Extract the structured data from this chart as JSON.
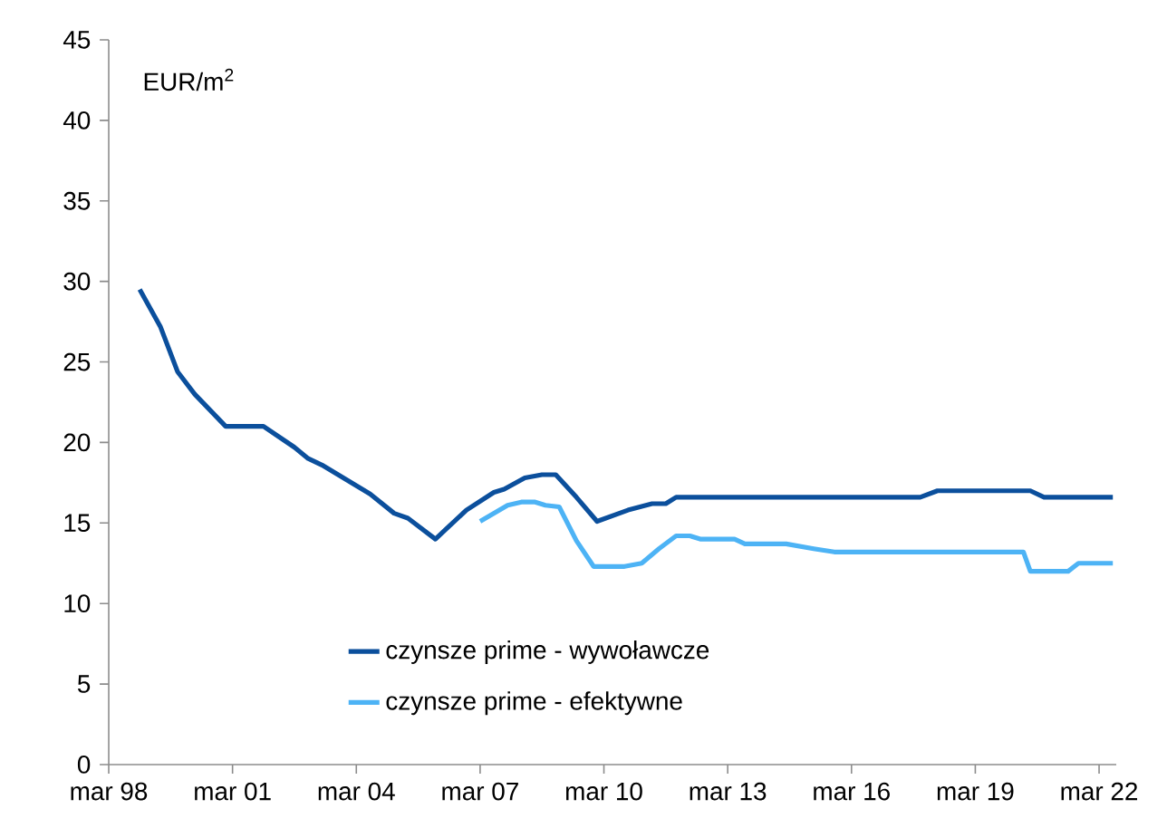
{
  "chart_data": {
    "type": "line",
    "ylabel": "EUR/m$^{2}$",
    "xlim": [
      "1998-03",
      "2022-08"
    ],
    "ylim": [
      0,
      45
    ],
    "xticks": [
      {
        "value": "1998-03",
        "label": "mar 98"
      },
      {
        "value": "2001-03",
        "label": "mar 01"
      },
      {
        "value": "2004-03",
        "label": "mar 04"
      },
      {
        "value": "2007-03",
        "label": "mar 07"
      },
      {
        "value": "2010-03",
        "label": "mar 10"
      },
      {
        "value": "2013-03",
        "label": "mar 13"
      },
      {
        "value": "2016-03",
        "label": "mar 16"
      },
      {
        "value": "2019-03",
        "label": "mar 19"
      },
      {
        "value": "2022-03",
        "label": "mar 22"
      }
    ],
    "yticks": [
      0,
      5,
      10,
      15,
      20,
      25,
      30,
      35,
      40,
      45
    ],
    "grid": false,
    "legend": "bottom",
    "marker": "none",
    "line_style": "solid",
    "series": [
      {
        "name": "czynsze prime  - wywoławcze",
        "color": "#0b4f9c",
        "x": [
          "1998-12",
          "1999-06",
          "1999-11",
          "2000-04",
          "2001-01",
          "2001-12",
          "2002-09",
          "2003-01",
          "2003-05",
          "2004-07",
          "2005-02",
          "2005-06",
          "2006-02",
          "2006-05",
          "2006-11",
          "2007-07",
          "2007-10",
          "2008-04",
          "2008-09",
          "2009-01",
          "2009-07",
          "2010-01",
          "2010-10",
          "2011-05",
          "2011-09",
          "2011-12",
          "2017-11",
          "2018-04",
          "2020-07",
          "2020-11",
          "2022-07"
        ],
        "values": [
          29.5,
          27.2,
          24.4,
          23,
          21,
          21,
          19.7,
          19,
          18.6,
          16.8,
          15.6,
          15.3,
          14,
          14.6,
          15.8,
          16.9,
          17.1,
          17.8,
          18,
          18,
          16.6,
          15.1,
          15.8,
          16.2,
          16.2,
          16.6,
          16.6,
          17,
          17,
          16.6,
          16.6
        ]
      },
      {
        "name": "czynsze prime - efektywne",
        "color": "#4db3f5",
        "x": [
          "2007-03",
          "2007-11",
          "2008-03",
          "2008-07",
          "2008-10",
          "2009-02",
          "2009-07",
          "2009-12",
          "2010-09",
          "2011-02",
          "2011-07",
          "2011-12",
          "2012-04",
          "2012-07",
          "2013-05",
          "2013-08",
          "2014-08",
          "2015-04",
          "2015-10",
          "2020-05",
          "2020-07",
          "2021-06",
          "2021-09",
          "2022-07"
        ],
        "values": [
          15.1,
          16.1,
          16.3,
          16.3,
          16.1,
          16,
          13.9,
          12.3,
          12.3,
          12.5,
          13.4,
          14.2,
          14.2,
          14,
          14,
          13.7,
          13.7,
          13.4,
          13.2,
          13.2,
          12,
          12,
          12.5,
          12.5
        ]
      }
    ]
  }
}
